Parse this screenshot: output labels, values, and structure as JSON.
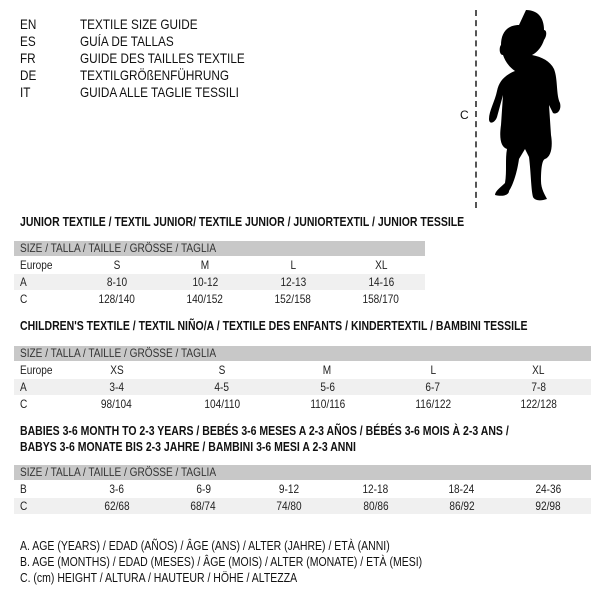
{
  "languages": [
    {
      "code": "EN",
      "name": "TEXTILE SIZE GUIDE"
    },
    {
      "code": "ES",
      "name": "GUÍA DE TALLAS"
    },
    {
      "code": "FR",
      "name": "GUIDE DES TAILLES TEXTILE"
    },
    {
      "code": "DE",
      "name": "TEXTILGRÖßENFÜHRUNG"
    },
    {
      "code": "IT",
      "name": "GUIDA ALLE TAGLIE TESSILI"
    }
  ],
  "figure": {
    "measure_label": "C"
  },
  "junior": {
    "title": "JUNIOR TEXTILE / TEXTIL JUNIOR/ TEXTILE JUNIOR / JUNIORTEXTIL / JUNIOR TESSILE",
    "header": "SIZE / TALLA / TAILLE / GRÖSSE / TAGLIA",
    "rows": [
      {
        "label": "Europe",
        "cells": [
          "S",
          "M",
          "L",
          "XL"
        ]
      },
      {
        "label": "A",
        "cells": [
          "8-10",
          "10-12",
          "12-13",
          "14-16"
        ]
      },
      {
        "label": "C",
        "cells": [
          "128/140",
          "140/152",
          "152/158",
          "158/170"
        ]
      }
    ]
  },
  "children": {
    "title": "CHILDREN'S TEXTILE / TEXTIL NIÑO/A / TEXTILE DES ENFANTS / KINDERTEXTIL / BAMBINI TESSILE",
    "header": "SIZE / TALLA / TAILLE / GRÖSSE / TAGLIA",
    "rows": [
      {
        "label": "Europe",
        "cells": [
          "XS",
          "S",
          "M",
          "L",
          "XL"
        ]
      },
      {
        "label": "A",
        "cells": [
          "3-4",
          "4-5",
          "5-6",
          "6-7",
          "7-8"
        ]
      },
      {
        "label": "C",
        "cells": [
          "98/104",
          "104/110",
          "110/116",
          "116/122",
          "122/128"
        ]
      }
    ]
  },
  "babies": {
    "title_line1": "BABIES 3-6 MONTH TO 2-3 YEARS / BEBÉS 3-6 MESES A 2-3 AÑOS / BÉBÉS 3-6 MOIS À 2-3 ANS /",
    "title_line2": "BABYS 3-6 MONATE BIS 2-3 JAHRE / BAMBINI 3-6 MESI A 2-3 ANNI",
    "header": "SIZE / TALLA / TAILLE / GRÖSSE / TAGLIA",
    "rows": [
      {
        "label": "B",
        "cells": [
          "3-6",
          "6-9",
          "9-12",
          "12-18",
          "18-24",
          "24-36"
        ]
      },
      {
        "label": "C",
        "cells": [
          "62/68",
          "68/74",
          "74/80",
          "80/86",
          "86/92",
          "92/98"
        ]
      }
    ]
  },
  "legend": [
    "A. AGE (YEARS) / EDAD (AÑOS) / ÂGE (ANS) / ALTER (JAHRE) / ETÀ (ANNI)",
    "B. AGE (MONTHS) / EDAD (MESES) / ÂGE (MOIS) / ALTER (MONATE) / ETÀ (MESI)",
    "C. (cm) HEIGHT / ALTURA / HAUTEUR / HÖHE / ALTEZZA"
  ]
}
